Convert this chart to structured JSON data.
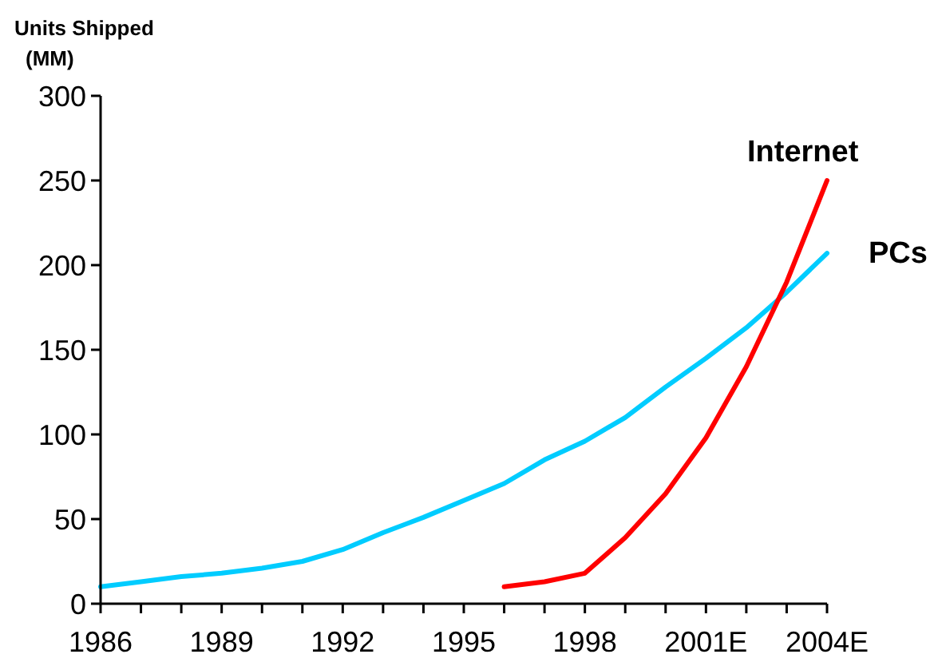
{
  "chart_data": {
    "type": "line",
    "ylabel": "Units Shipped\n(MM)",
    "categories": [
      "1986",
      null,
      null,
      "1989",
      null,
      null,
      "1992",
      null,
      null,
      "1995",
      null,
      null,
      "1998",
      null,
      null,
      "2001E",
      null,
      null,
      "2004E"
    ],
    "series": [
      {
        "name": "PCs",
        "color": "#00ccff",
        "values": [
          10,
          13,
          16,
          18,
          21,
          25,
          32,
          42,
          51,
          61,
          71,
          85,
          96,
          110,
          128,
          145,
          163,
          184,
          207
        ]
      },
      {
        "name": "Internet",
        "color": "#ff0000",
        "values": [
          null,
          null,
          null,
          null,
          null,
          null,
          null,
          null,
          null,
          null,
          10,
          13,
          18,
          39,
          65,
          98,
          140,
          190,
          250
        ]
      }
    ],
    "ylim": [
      0,
      300
    ],
    "yticks": [
      0,
      50,
      100,
      150,
      200,
      250,
      300
    ],
    "grid": false,
    "marker": "none",
    "line_style": "solid"
  }
}
